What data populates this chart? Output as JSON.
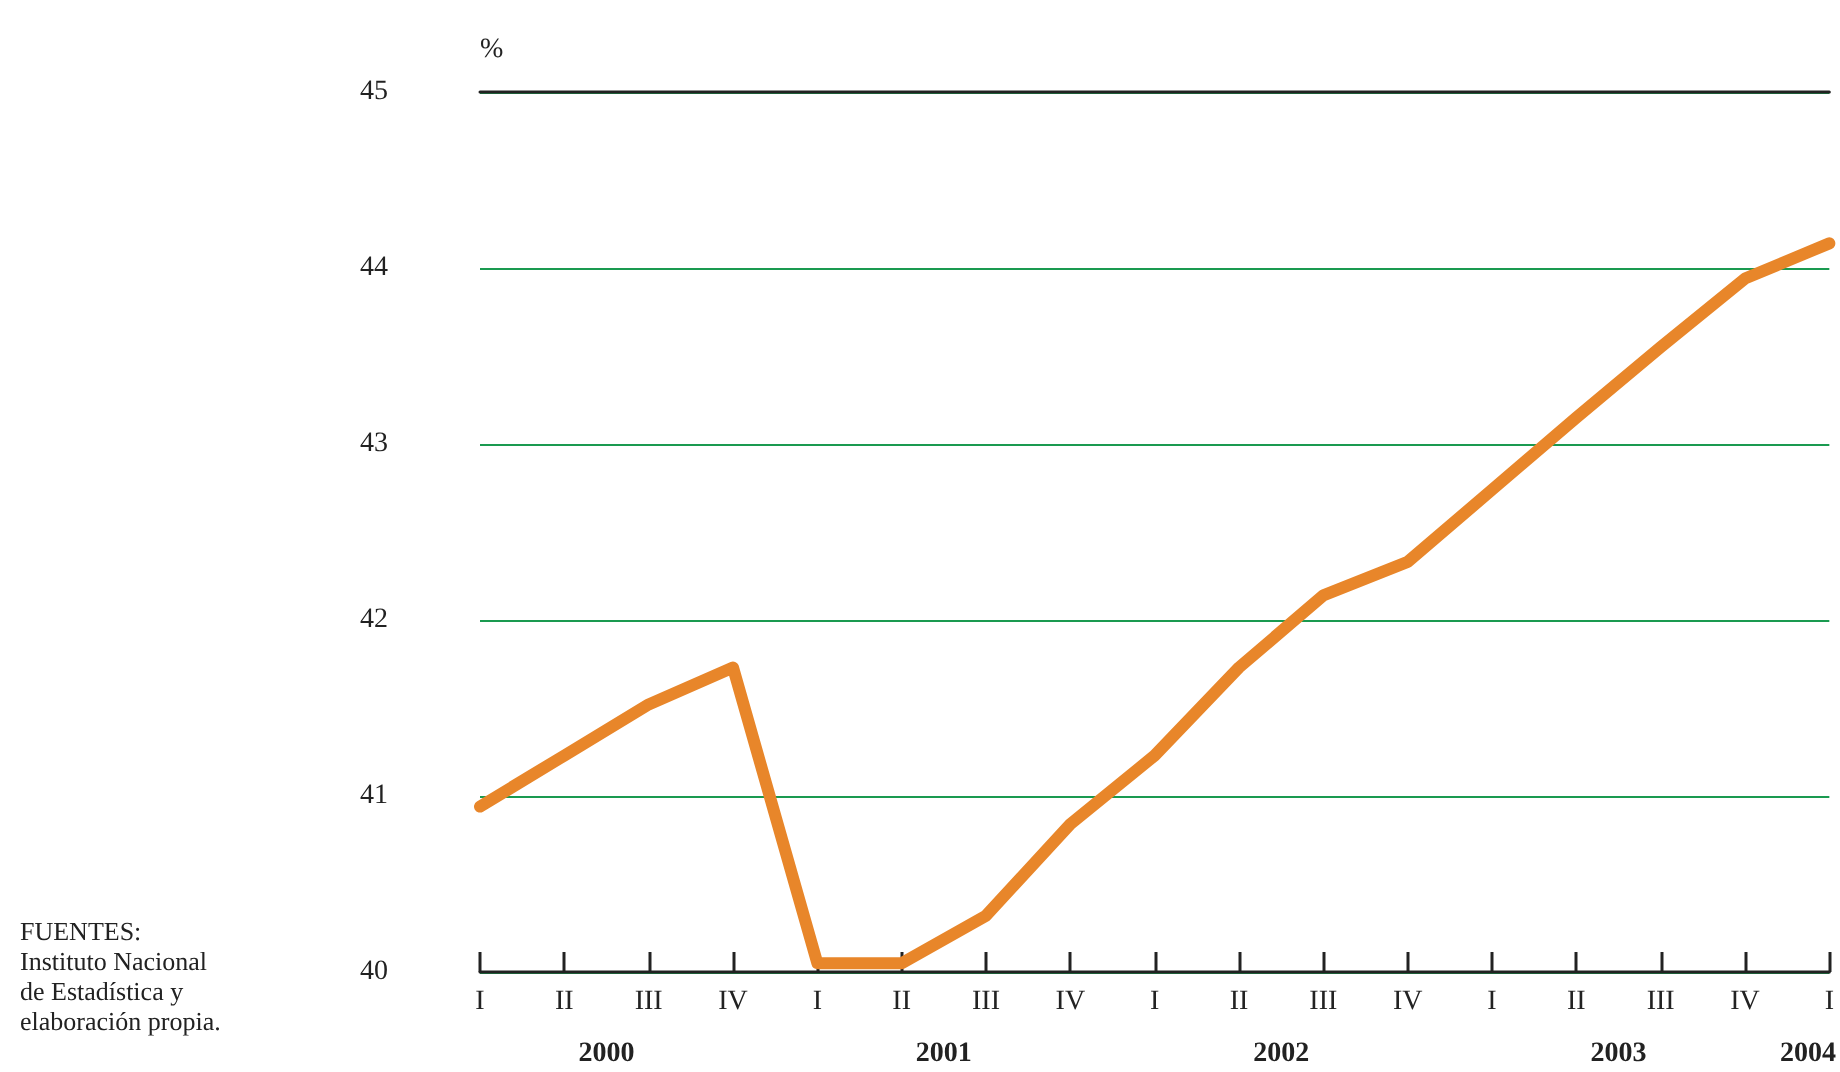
{
  "chart_data": {
    "type": "line",
    "ylabel": "%",
    "categories": [
      "I",
      "II",
      "III",
      "IV",
      "I",
      "II",
      "III",
      "IV",
      "I",
      "II",
      "III",
      "IV",
      "I",
      "II",
      "III",
      "IV",
      "I"
    ],
    "series": [
      {
        "color": "#e8862a",
        "values": [
          40.94,
          41.23,
          41.52,
          41.73,
          40.05,
          40.05,
          40.32,
          40.84,
          41.23,
          41.73,
          42.14,
          42.33,
          42.74,
          43.15,
          43.55,
          43.94,
          44.14
        ]
      }
    ],
    "ylim": [
      40,
      45
    ],
    "yticks": [
      40,
      41,
      42,
      43,
      44,
      45
    ],
    "grid": "y",
    "marker": "none",
    "line_style": "solid",
    "annotations": [
      "2000",
      "2001",
      "2002",
      "2003",
      "2004",
      "FUENTES:\nInstituto Nacional\nde Estadística y\nelaboración propia."
    ]
  }
}
